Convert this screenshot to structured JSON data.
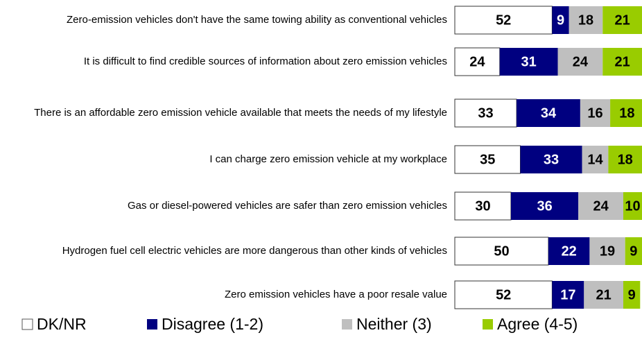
{
  "chart_data": {
    "type": "stacked-bar",
    "orientation": "horizontal",
    "categories": [
      "Zero-emission vehicles don't have the same towing ability as conventional vehicles",
      "It is difficult to find credible sources of information about zero emission vehicles",
      "There is an affordable zero emission vehicle available that meets the needs of my lifestyle",
      "I can charge zero emission vehicle at my workplace",
      "Gas or diesel-powered vehicles are safer than zero emission vehicles",
      "Hydrogen fuel cell electric vehicles are more dangerous than other kinds of vehicles",
      "Zero emission vehicles have a poor resale value"
    ],
    "series": [
      {
        "name": "DK/NR",
        "color": "#ffffff",
        "values": [
          52,
          24,
          33,
          35,
          30,
          50,
          52
        ]
      },
      {
        "name": "Disagree (1-2)",
        "color": "#000080",
        "values": [
          9,
          31,
          34,
          33,
          36,
          22,
          17
        ]
      },
      {
        "name": "Neither (3)",
        "color": "#bfbfbf",
        "values": [
          18,
          24,
          16,
          14,
          24,
          19,
          21
        ]
      },
      {
        "name": "Agree (4-5)",
        "color": "#99cc00",
        "values": [
          21,
          21,
          18,
          18,
          10,
          9,
          9
        ]
      }
    ],
    "legend": "bottom"
  }
}
